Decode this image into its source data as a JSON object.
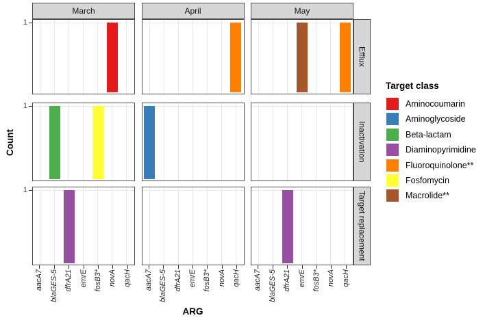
{
  "chart_data": {
    "type": "bar",
    "title": "",
    "xlabel": "ARG",
    "ylabel": "Count",
    "x_categories": [
      "aacA7",
      "blaGES-5",
      "dfrA21",
      "emrE",
      "fosB3*",
      "novA",
      "qacH"
    ],
    "column_facets": [
      "March",
      "April",
      "May"
    ],
    "row_facets": [
      "Efflux",
      "Inactivation",
      "Target replacement"
    ],
    "y_axis": {
      "tick_label": "1",
      "ticks": [
        1
      ],
      "ylim": [
        0,
        1
      ]
    },
    "grid": true,
    "legend": {
      "title": "Target class",
      "position": "right",
      "entries": [
        {
          "label": "Aminocoumarin",
          "color": "#E41A1C"
        },
        {
          "label": "Aminoglycoside",
          "color": "#377EB8"
        },
        {
          "label": "Beta-lactam",
          "color": "#4DAF4A"
        },
        {
          "label": "Diaminopyrimidine",
          "color": "#984EA3"
        },
        {
          "label": "Fluoroquinolone**",
          "color": "#FF7F00"
        },
        {
          "label": "Fosfomycin",
          "color": "#FFFF33"
        },
        {
          "label": "Macrolide**",
          "color": "#A65628"
        }
      ]
    },
    "bars": [
      {
        "month": "March",
        "mechanism": "Efflux",
        "arg": "novA",
        "target_class": "Aminocoumarin",
        "count": 1
      },
      {
        "month": "April",
        "mechanism": "Efflux",
        "arg": "qacH",
        "target_class": "Fluoroquinolone**",
        "count": 1
      },
      {
        "month": "May",
        "mechanism": "Efflux",
        "arg": "emrE",
        "target_class": "Macrolide**",
        "count": 1
      },
      {
        "month": "May",
        "mechanism": "Efflux",
        "arg": "qacH",
        "target_class": "Fluoroquinolone**",
        "count": 1
      },
      {
        "month": "March",
        "mechanism": "Inactivation",
        "arg": "blaGES-5",
        "target_class": "Beta-lactam",
        "count": 1
      },
      {
        "month": "March",
        "mechanism": "Inactivation",
        "arg": "fosB3*",
        "target_class": "Fosfomycin",
        "count": 1
      },
      {
        "month": "April",
        "mechanism": "Inactivation",
        "arg": "aacA7",
        "target_class": "Aminoglycoside",
        "count": 1
      },
      {
        "month": "March",
        "mechanism": "Target replacement",
        "arg": "dfrA21",
        "target_class": "Diaminopyrimidine",
        "count": 1
      },
      {
        "month": "May",
        "mechanism": "Target replacement",
        "arg": "dfrA21",
        "target_class": "Diaminopyrimidine",
        "count": 1
      }
    ]
  }
}
